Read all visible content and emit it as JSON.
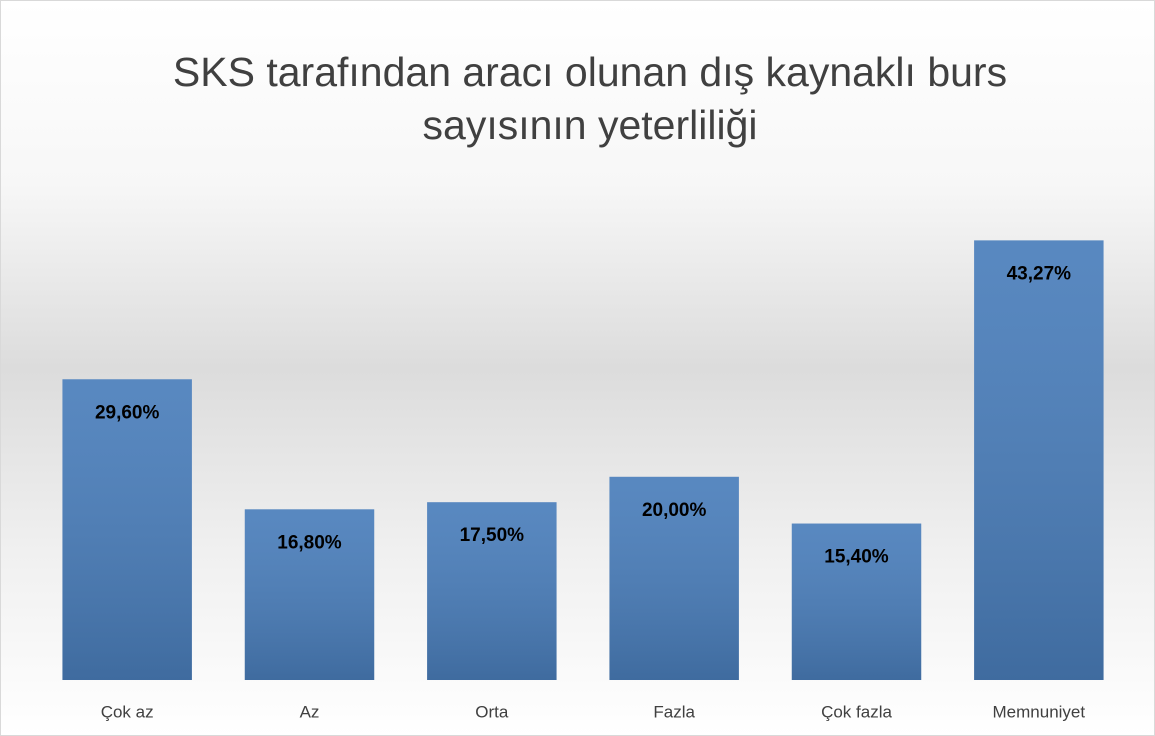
{
  "chart_data": {
    "type": "bar",
    "title": [
      "SKS tarafından aracı olunan dış kaynaklı burs",
      "sayısının yeterliliği"
    ],
    "categories": [
      "Çok az",
      "Az",
      "Orta",
      "Fazla",
      "Çok fazla",
      "Memnuniyet"
    ],
    "values": [
      29.6,
      16.8,
      17.5,
      20,
      15.4,
      43.27
    ],
    "value_labels": [
      "29,60%",
      "16,80%",
      "17,50%",
      "20,00%",
      "15,40%",
      "43,27%"
    ],
    "color": "#4a7ebb",
    "ylim": [
      0,
      50
    ]
  }
}
